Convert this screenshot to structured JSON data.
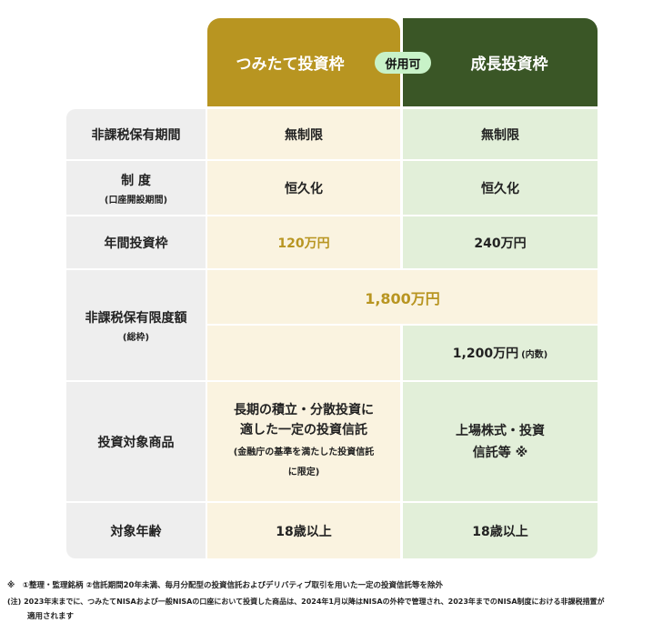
{
  "header": {
    "col1": "つみたて投資枠",
    "col2": "成長投資枠",
    "badge": "併用可",
    "col1_color": "#b89521",
    "col2_color": "#3a5626",
    "badge_color": "#c8f2c8"
  },
  "rows": [
    {
      "label": "非課税保有期間",
      "col1": "無制限",
      "col2": "無制限"
    },
    {
      "label": "制 度",
      "label_sub": "(口座開設期間)",
      "col1": "恒久化",
      "col2": "恒久化"
    },
    {
      "label": "年間投資枠",
      "col1": "120万円",
      "col2": "240万円"
    },
    {
      "label": "非課税保有限度額",
      "label_sub": "(総枠)",
      "shared": "1,800万円",
      "col2": "1,200万円",
      "col2_sub": "(内数)"
    },
    {
      "label": "投資対象商品",
      "col1": "長期の積立・分散投資に適した一定の投資信託",
      "col1_sub": "(金融庁の基準を満たした投資信託に限定)",
      "col2": "上場株式・投資信託等 ※"
    },
    {
      "label": "対象年齢",
      "col1": "18歳以上",
      "col2": "18歳以上"
    }
  ],
  "notes": [
    "※　①整理・監理銘柄 ②信託期間20年未満、毎月分配型の投資信託およびデリバティブ取引を用いた一定の投資信託等を除外",
    "(注) 2023年末までに、つみたてNISAおよび一般NISAの口座において投資した商品は、2024年1月以降はNISAの外枠で管理され、2023年までのNISA制度における非課税措置が",
    "適用されます"
  ]
}
